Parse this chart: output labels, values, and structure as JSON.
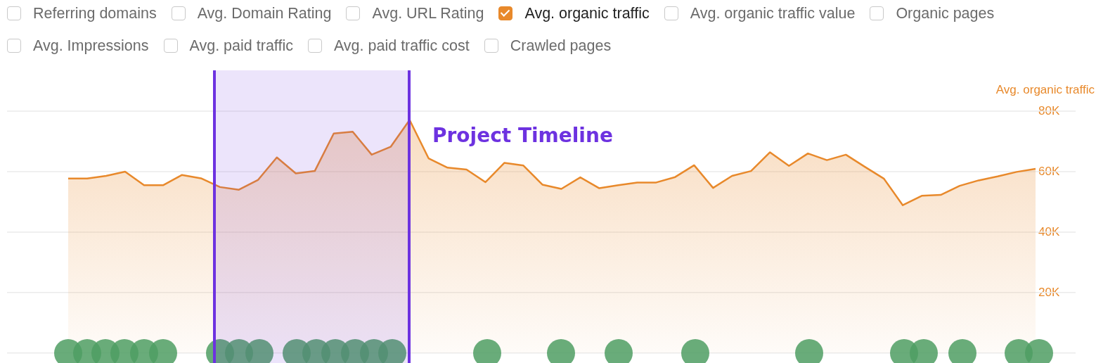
{
  "chart_data": {
    "type": "area",
    "ylabel": "Avg. organic traffic",
    "annotations": [
      "Project Timeline",
      "Referring domains",
      "Avg. Domain Rating",
      "Avg. URL Rating",
      "Avg. organic traffic value",
      "Organic pages",
      "Avg. Impressions",
      "Avg. paid traffic",
      "Avg. paid traffic cost",
      "Crawled pages"
    ],
    "categories": [
      null,
      null,
      null,
      null,
      null,
      null,
      null,
      null,
      null,
      null,
      null,
      null,
      null,
      null,
      null,
      null,
      null,
      null,
      null,
      null,
      null,
      null,
      null,
      null,
      null,
      null,
      null,
      null,
      null,
      null,
      null,
      null,
      null,
      null,
      null,
      null,
      null,
      null,
      null,
      null,
      null,
      null,
      null,
      null,
      null,
      null,
      null,
      null,
      null,
      null,
      null,
      null
    ],
    "ylim": [
      0,
      80000
    ],
    "yticks": [
      {
        "value": 0,
        "label": null
      },
      {
        "value": 20000,
        "label": "20K"
      },
      {
        "value": 40000,
        "label": "40K"
      },
      {
        "value": 60000,
        "label": "60K"
      },
      {
        "value": 80000,
        "label": "80K"
      }
    ],
    "tick_labels": "y",
    "grid": "y",
    "legend": "top left",
    "series": [
      {
        "name": "Avg. organic traffic",
        "color": "#e8892b",
        "values": [
          57700,
          57700,
          58600,
          60000,
          55500,
          55500,
          58900,
          57800,
          54900,
          54000,
          57200,
          64700,
          59400,
          60200,
          72600,
          73200,
          65600,
          68200,
          77100,
          64400,
          61300,
          60700,
          56500,
          62900,
          62000,
          55700,
          54300,
          58100,
          54500,
          55500,
          56400,
          56400,
          58200,
          62100,
          54600,
          58600,
          60200,
          66400,
          61900,
          66000,
          63800,
          65600,
          61600,
          57700,
          48900,
          52000,
          52300,
          55300,
          57100,
          58400,
          59900,
          60900
        ]
      }
    ]
  }
}
